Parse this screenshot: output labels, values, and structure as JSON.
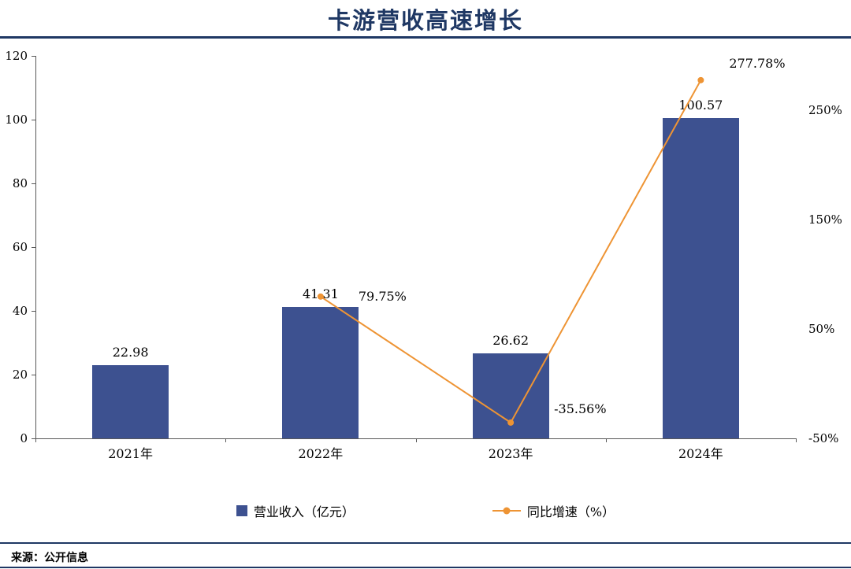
{
  "title": "卡游营收高速增长",
  "source_note": "来源：公开信息",
  "colors": {
    "bar": "#3d5190",
    "line": "#ee9434",
    "accent": "#1f3864"
  },
  "legend": [
    {
      "label": "营业收入（亿元）"
    },
    {
      "label": "同比增速（%）"
    }
  ],
  "chart_data": {
    "type": "bar+line",
    "title": "卡游营收高速增长",
    "categories": [
      "2021年",
      "2022年",
      "2023年",
      "2024年"
    ],
    "series": [
      {
        "name": "营业收入（亿元）",
        "type": "bar",
        "axis": "left",
        "values": [
          22.98,
          41.31,
          26.62,
          100.57
        ],
        "labels": [
          "22.98",
          "41.31",
          "26.62",
          "100.57"
        ]
      },
      {
        "name": "同比增速（%）",
        "type": "line",
        "axis": "right",
        "values": [
          null,
          79.75,
          -35.56,
          277.78
        ],
        "labels": [
          null,
          "79.75%",
          "-35.56%",
          "277.78%"
        ]
      }
    ],
    "left_axis": {
      "min": 0,
      "max": 120,
      "step": 20,
      "ticks": [
        "0",
        "20",
        "40",
        "60",
        "80",
        "100",
        "120"
      ]
    },
    "right_axis": {
      "min": -50,
      "max": 300,
      "ticks": [
        {
          "value": -50,
          "label": "-50%"
        },
        {
          "value": 50,
          "label": "50%"
        },
        {
          "value": 150,
          "label": "150%"
        },
        {
          "value": 250,
          "label": "250%"
        }
      ]
    },
    "grid": false,
    "legend_position": "bottom"
  }
}
